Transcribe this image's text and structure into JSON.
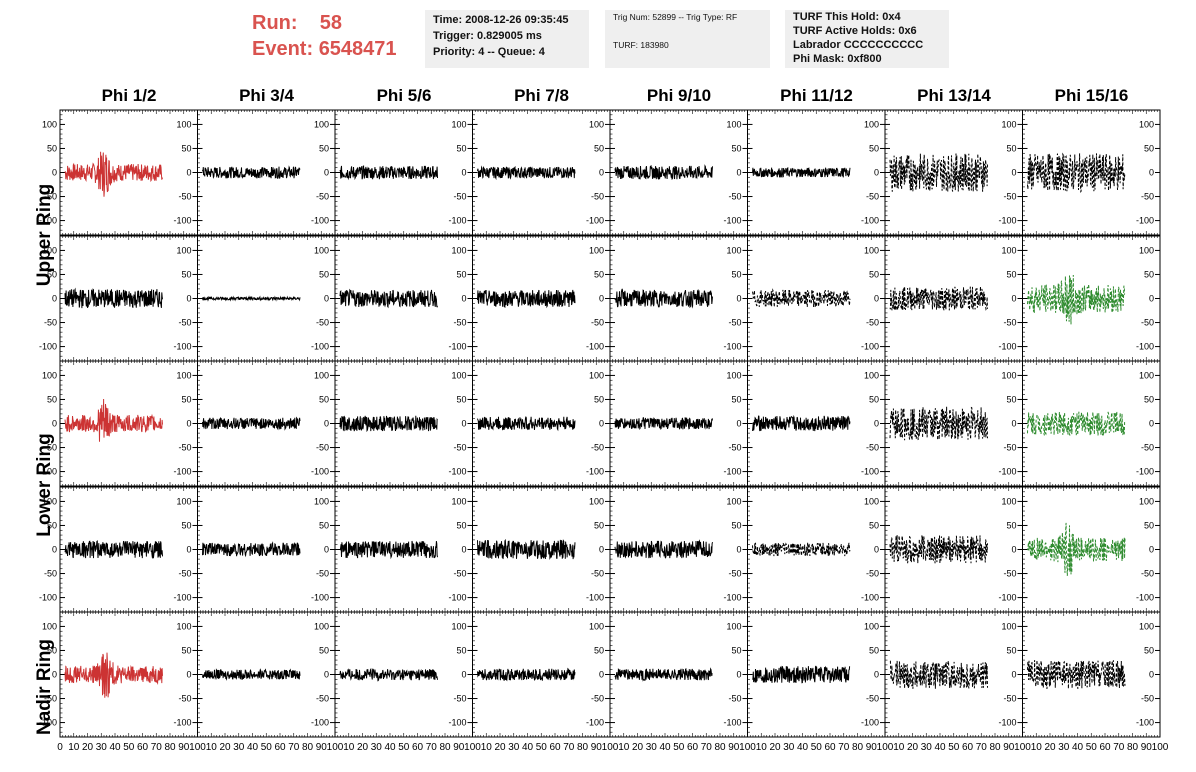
{
  "run_label": "Run:",
  "run_value": "58",
  "event_label": "Event:",
  "event_value": "6548471",
  "info_time": "Time: 2008-12-26 09:35:45",
  "info_trigger": "Trigger: 0.829005 ms",
  "info_priority": "Priority: 4 -- Queue: 4",
  "info_trignum": "Trig Num: 52899 -- Trig Type: RF",
  "info_turf": "TURF: 183980",
  "info_hold": "TURF This Hold: 0x4",
  "info_active": "TURF Active Holds: 0x6",
  "info_labrador": "Labrador CCCCCCCCCC",
  "info_phimask": "Phi Mask: 0xf800",
  "columns": [
    "Phi 1/2",
    "Phi 3/4",
    "Phi 5/6",
    "Phi 7/8",
    "Phi 9/10",
    "Phi 11/12",
    "Phi 13/14",
    "Phi 15/16"
  ],
  "rows": [
    "Upper Ring",
    "Lower Ring",
    "Nadir Ring"
  ],
  "colors": {
    "red": "#cc3333",
    "black": "#000000",
    "green": "#2e8b2e",
    "run": "#d9534f"
  },
  "chart_data": {
    "type": "line",
    "ylim": [
      -130,
      130
    ],
    "xlim": [
      0,
      100
    ],
    "y_ticks": [
      -100,
      -50,
      0,
      50,
      100
    ],
    "x_ticks": [
      0,
      10,
      20,
      30,
      40,
      50,
      60,
      70,
      80,
      90,
      100
    ],
    "x_tick_labels_first": [
      "0",
      "10",
      "20",
      "30",
      "40",
      "50",
      "60",
      "70",
      "80",
      "90",
      "100"
    ],
    "x_tick_labels_other": [
      "10",
      "20",
      "30",
      "40",
      "50",
      "60",
      "70",
      "80",
      "90",
      "100"
    ],
    "panels": [
      [
        {
          "color": "red",
          "amp": 18,
          "dashed": false,
          "burst": 40
        },
        {
          "color": "black",
          "amp": 12,
          "dashed": false
        },
        {
          "color": "black",
          "amp": 14,
          "dashed": false
        },
        {
          "color": "black",
          "amp": 12,
          "dashed": false
        },
        {
          "color": "black",
          "amp": 14,
          "dashed": false
        },
        {
          "color": "black",
          "amp": 10,
          "dashed": false
        },
        {
          "color": "black",
          "amp": 40,
          "dashed": true
        },
        {
          "color": "black",
          "amp": 40,
          "dashed": true
        }
      ],
      [
        {
          "color": "black",
          "amp": 20,
          "dashed": false
        },
        {
          "color": "black",
          "amp": 3,
          "dashed": false
        },
        {
          "color": "black",
          "amp": 18,
          "dashed": false
        },
        {
          "color": "black",
          "amp": 18,
          "dashed": false
        },
        {
          "color": "black",
          "amp": 18,
          "dashed": false
        },
        {
          "color": "black",
          "amp": 18,
          "dashed": true
        },
        {
          "color": "black",
          "amp": 25,
          "dashed": true
        },
        {
          "color": "green",
          "amp": 30,
          "dashed": true,
          "burst": 42
        }
      ],
      [
        {
          "color": "red",
          "amp": 18,
          "dashed": false,
          "burst": 40
        },
        {
          "color": "black",
          "amp": 12,
          "dashed": false
        },
        {
          "color": "black",
          "amp": 16,
          "dashed": false
        },
        {
          "color": "black",
          "amp": 14,
          "dashed": false
        },
        {
          "color": "black",
          "amp": 12,
          "dashed": false
        },
        {
          "color": "black",
          "amp": 16,
          "dashed": false
        },
        {
          "color": "black",
          "amp": 35,
          "dashed": true
        },
        {
          "color": "green",
          "amp": 25,
          "dashed": true
        }
      ],
      [
        {
          "color": "black",
          "amp": 18,
          "dashed": false
        },
        {
          "color": "black",
          "amp": 14,
          "dashed": false
        },
        {
          "color": "black",
          "amp": 18,
          "dashed": false
        },
        {
          "color": "black",
          "amp": 20,
          "dashed": false
        },
        {
          "color": "black",
          "amp": 18,
          "dashed": false
        },
        {
          "color": "black",
          "amp": 14,
          "dashed": true
        },
        {
          "color": "black",
          "amp": 30,
          "dashed": true
        },
        {
          "color": "green",
          "amp": 25,
          "dashed": true,
          "burst": 42
        }
      ],
      [
        {
          "color": "red",
          "amp": 18,
          "dashed": false,
          "burst": 42
        },
        {
          "color": "black",
          "amp": 10,
          "dashed": false
        },
        {
          "color": "black",
          "amp": 12,
          "dashed": false
        },
        {
          "color": "black",
          "amp": 12,
          "dashed": false
        },
        {
          "color": "black",
          "amp": 12,
          "dashed": false
        },
        {
          "color": "black",
          "amp": 18,
          "dashed": false
        },
        {
          "color": "black",
          "amp": 30,
          "dashed": true
        },
        {
          "color": "black",
          "amp": 30,
          "dashed": true
        }
      ]
    ]
  }
}
